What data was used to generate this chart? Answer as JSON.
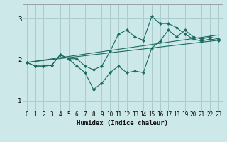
{
  "xlabel": "Humidex (Indice chaleur)",
  "background_color": "#cce8e8",
  "grid_color": "#aacccc",
  "line_color": "#1a6b60",
  "xlim": [
    -0.5,
    23.5
  ],
  "ylim": [
    0.75,
    3.35
  ],
  "yticks": [
    1,
    2,
    3
  ],
  "xticks": [
    0,
    1,
    2,
    3,
    4,
    5,
    6,
    7,
    8,
    9,
    10,
    11,
    12,
    13,
    14,
    15,
    16,
    17,
    18,
    19,
    20,
    21,
    22,
    23
  ],
  "series": [
    {
      "x": [
        0,
        1,
        2,
        3,
        4,
        5,
        6,
        7,
        8,
        9,
        10,
        11,
        12,
        13,
        14,
        15,
        16,
        17,
        18,
        19,
        20,
        21,
        22,
        23
      ],
      "y": [
        1.93,
        1.84,
        1.84,
        1.86,
        2.12,
        2.02,
        1.84,
        1.68,
        1.27,
        1.42,
        1.68,
        1.84,
        1.68,
        1.72,
        1.68,
        2.28,
        2.45,
        2.72,
        2.55,
        2.72,
        2.55,
        2.5,
        2.55,
        2.5
      ],
      "markers": true
    },
    {
      "x": [
        0,
        1,
        2,
        3,
        4,
        5,
        6,
        7,
        8,
        9,
        10,
        11,
        12,
        13,
        14,
        15,
        16,
        17,
        18,
        19,
        20,
        21,
        22,
        23
      ],
      "y": [
        1.93,
        1.84,
        1.84,
        1.86,
        2.12,
        2.02,
        2.02,
        1.84,
        1.75,
        1.84,
        2.2,
        2.62,
        2.72,
        2.55,
        2.47,
        3.05,
        2.88,
        2.88,
        2.78,
        2.62,
        2.5,
        2.45,
        2.5,
        2.47
      ],
      "markers": true
    },
    {
      "x": [
        0,
        23
      ],
      "y": [
        1.93,
        2.6
      ],
      "markers": false
    },
    {
      "x": [
        0,
        23
      ],
      "y": [
        1.93,
        2.47
      ],
      "markers": false
    }
  ]
}
